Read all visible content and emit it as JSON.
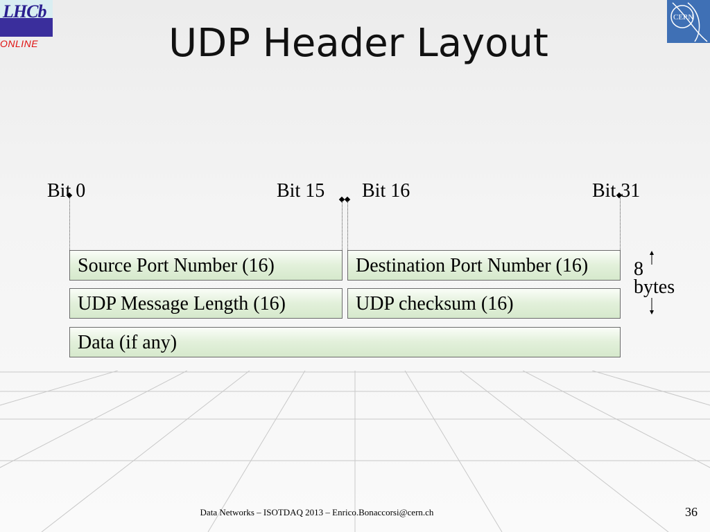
{
  "title": "UDP Header Layout",
  "logos": {
    "left": "LHCb ONLINE",
    "right": "CERN"
  },
  "bits": {
    "bit0": "Bit 0",
    "bit15": "Bit 15",
    "bit16": "Bit 16",
    "bit31": "Bit 31"
  },
  "fields": {
    "source_port": "Source Port Number (16)",
    "dest_port": "Destination Port Number (16)",
    "length": "UDP Message Length (16)",
    "checksum": "UDP checksum (16)",
    "data": "Data (if any)"
  },
  "size_label": {
    "value": "8",
    "unit": "bytes"
  },
  "footer": "Data Networks – ISOTDAQ 2013 – Enrico.Bonaccorsi@cern.ch",
  "page_number": "36",
  "colors": {
    "box_fill": "#e2f0da",
    "box_border": "#6a6a6a",
    "cern_blue": "#3f70b5",
    "lhcb_purple": "#3a2e9c",
    "online_red": "#e01010"
  }
}
